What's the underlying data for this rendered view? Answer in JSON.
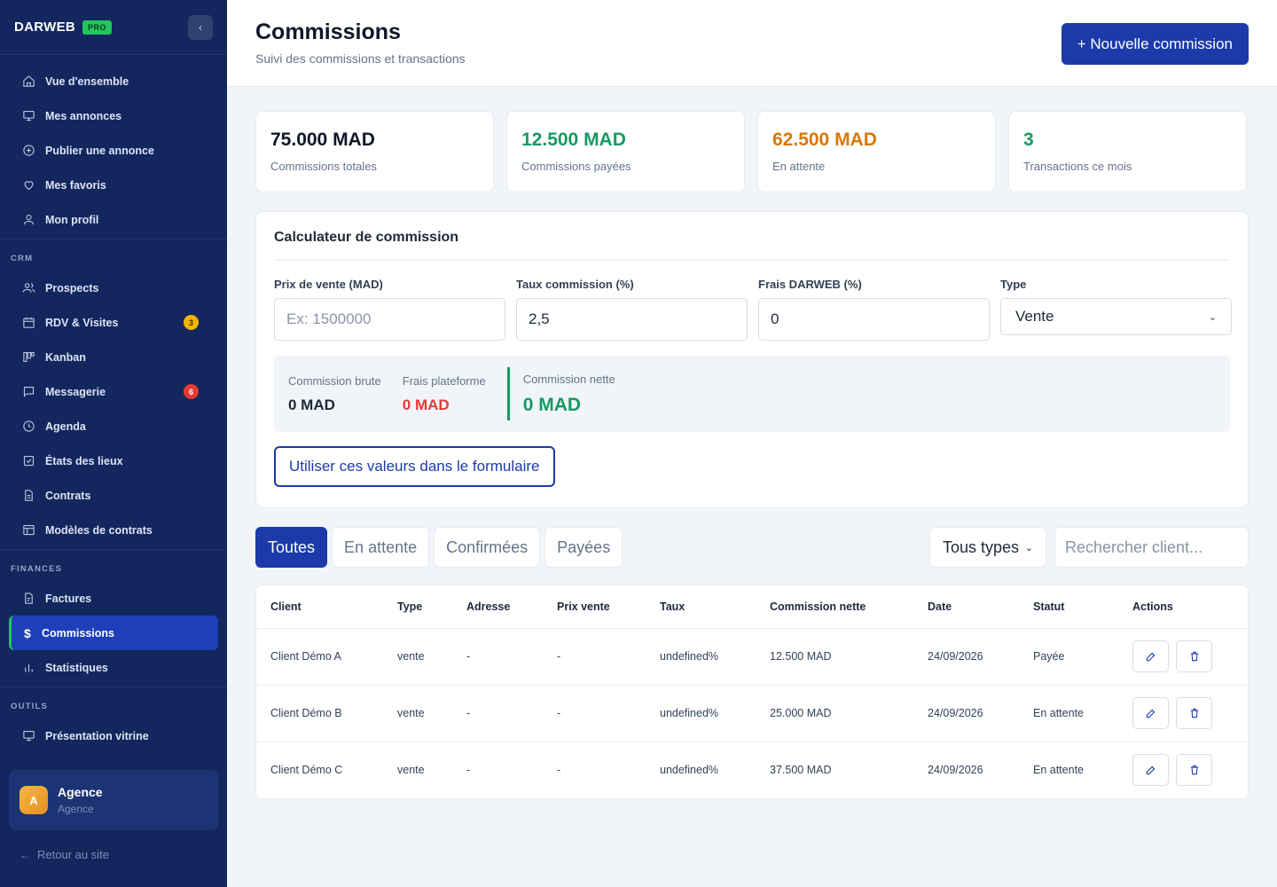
{
  "brand": {
    "name": "DARWEB",
    "badge": "PRO"
  },
  "sidebar": {
    "items": [
      {
        "label": "Vue d'ensemble",
        "icon": "home-icon"
      },
      {
        "label": "Mes annonces",
        "icon": "monitor-icon"
      },
      {
        "label": "Publier une annonce",
        "icon": "plus-circle-icon"
      },
      {
        "label": "Mes favoris",
        "icon": "heart-icon"
      },
      {
        "label": "Mon profil",
        "icon": "user-icon"
      }
    ],
    "crm_label": "CRM",
    "crm_items": [
      {
        "label": "Prospects",
        "icon": "users-icon"
      },
      {
        "label": "RDV & Visites",
        "icon": "calendar-icon",
        "badge": "3"
      },
      {
        "label": "Kanban",
        "icon": "kanban-icon"
      },
      {
        "label": "Messagerie",
        "icon": "chat-icon",
        "badge": "6"
      },
      {
        "label": "Agenda",
        "icon": "clock-icon"
      },
      {
        "label": "États des lieux",
        "icon": "checklist-icon"
      },
      {
        "label": "Contrats",
        "icon": "document-icon"
      },
      {
        "label": "Modèles de contrats",
        "icon": "template-icon"
      }
    ],
    "finances_label": "FINANCES",
    "finances_items": [
      {
        "label": "Factures",
        "icon": "invoice-icon"
      },
      {
        "label": "Commissions",
        "icon": "dollar-icon",
        "active": true
      },
      {
        "label": "Statistiques",
        "icon": "bar-chart-icon"
      }
    ],
    "outils_label": "OUTILS",
    "outils_items": [
      {
        "label": "Présentation vitrine",
        "icon": "presentation-icon"
      }
    ],
    "user": {
      "initial": "A",
      "name": "Agence",
      "role": "Agence"
    },
    "back_link": "Retour au site"
  },
  "header": {
    "title": "Commissions",
    "subtitle": "Suivi des commissions et transactions",
    "new_button": "+ Nouvelle commission"
  },
  "stats": [
    {
      "value": "75.000 MAD",
      "label": "Commissions totales",
      "color": "#0f172a"
    },
    {
      "value": "12.500 MAD",
      "label": "Commissions payées",
      "color": "#179a62"
    },
    {
      "value": "62.500 MAD",
      "label": "En attente",
      "color": "#d97706"
    },
    {
      "value": "3",
      "label": "Transactions ce mois",
      "color": "#179a62"
    }
  ],
  "calculator": {
    "title": "Calculateur de commission",
    "price_label": "Prix de vente (MAD)",
    "price_value": "",
    "price_placeholder": "Ex: 1500000",
    "rate_label": "Taux commission (%)",
    "rate_value": "2,5",
    "fee_label": "Frais DARWEB (%)",
    "fee_value": "0",
    "type_label": "Type",
    "type_value": "Vente",
    "gross_label": "Commission brute",
    "gross_value": "0 MAD",
    "platform_label": "Frais plateforme",
    "platform_value": "0 MAD",
    "net_label": "Commission nette",
    "net_value": "0 MAD",
    "use_button": "Utiliser ces valeurs dans le formulaire"
  },
  "filters": {
    "tabs": [
      "Toutes",
      "En attente",
      "Confirmées",
      "Payées"
    ],
    "active_tab": 0,
    "type_select": "Tous types",
    "search_placeholder": "Rechercher client..."
  },
  "table": {
    "columns": [
      "Client",
      "Type",
      "Adresse",
      "Prix vente",
      "Taux",
      "Commission nette",
      "Date",
      "Statut",
      "Actions"
    ],
    "rows": [
      [
        "Client Démo A",
        "vente",
        "-",
        "-",
        "undefined%",
        "12.500 MAD",
        "24/09/2026",
        "Payée"
      ],
      [
        "Client Démo B",
        "vente",
        "-",
        "-",
        "undefined%",
        "25.000 MAD",
        "24/09/2026",
        "En attente"
      ],
      [
        "Client Démo C",
        "vente",
        "-",
        "-",
        "undefined%",
        "37.500 MAD",
        "24/09/2026",
        "En attente"
      ]
    ]
  },
  "colors": {
    "sidebar": "#13275e",
    "primary": "#1c3aa9",
    "success": "#179a62",
    "warning": "#d97706",
    "danger": "#e53935"
  }
}
